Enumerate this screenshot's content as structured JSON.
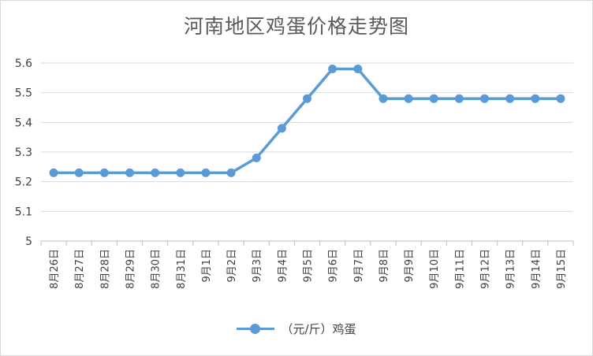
{
  "chart_data": {
    "type": "line",
    "title": "河南地区鸡蛋价格走势图",
    "categories": [
      "8月26日",
      "8月27日",
      "8月28日",
      "8月29日",
      "8月30日",
      "8月31日",
      "9月1日",
      "9月2日",
      "9月3日",
      "9月4日",
      "9月5日",
      "9月6日",
      "9月7日",
      "9月8日",
      "9月9日",
      "9月10日",
      "9月11日",
      "9月12日",
      "9月13日",
      "9月14日",
      "9月15日"
    ],
    "series": [
      {
        "name": "（元/斤）鸡蛋",
        "color": "#5b9bd5",
        "values": [
          5.23,
          5.23,
          5.23,
          5.23,
          5.23,
          5.23,
          5.23,
          5.23,
          5.28,
          5.38,
          5.48,
          5.58,
          5.58,
          5.48,
          5.48,
          5.48,
          5.48,
          5.48,
          5.48,
          5.48,
          5.48
        ]
      }
    ],
    "yticks": [
      "5",
      "5.1",
      "5.2",
      "5.3",
      "5.4",
      "5.5",
      "5.6"
    ],
    "ylim": [
      5,
      5.6
    ],
    "grid": true,
    "legend_position": "bottom"
  }
}
